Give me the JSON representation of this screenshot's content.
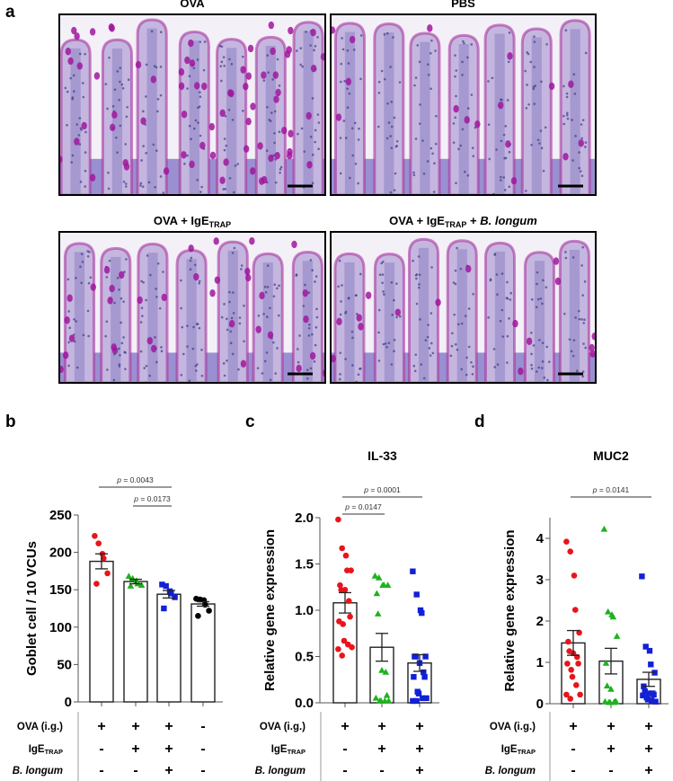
{
  "panel_a": {
    "label": "a",
    "images": [
      {
        "title": "OVA",
        "title_sub": "",
        "title_italic": "",
        "goblet_density": "high"
      },
      {
        "title": "PBS",
        "title_sub": "",
        "title_italic": "",
        "goblet_density": "low"
      },
      {
        "title": "OVA + IgE",
        "title_sub": "TRAP",
        "title_italic": "",
        "goblet_density": "medium"
      },
      {
        "title": "OVA + IgE",
        "title_sub": "TRAP",
        "title_tail": " + ",
        "title_italic": "B. longum",
        "goblet_density": "low"
      }
    ],
    "colors": {
      "tissue": "#c5b6df",
      "goblet": "#a0169e",
      "nuclei": "#3b3f8a",
      "border": "#a6369f"
    }
  },
  "treatment_table": {
    "rows": [
      {
        "label": "OVA (i.g.)",
        "sub": "",
        "italic": false
      },
      {
        "label": "IgE",
        "sub": "TRAP",
        "italic": false
      },
      {
        "label": "B. longum",
        "sub": "",
        "italic": true
      }
    ],
    "b": [
      [
        "+",
        "+",
        "+",
        "-"
      ],
      [
        "-",
        "+",
        "+",
        "-"
      ],
      [
        "-",
        "-",
        "+",
        "-"
      ]
    ],
    "c": [
      [
        "+",
        "+",
        "+"
      ],
      [
        "-",
        "+",
        "+"
      ],
      [
        "-",
        "-",
        "+"
      ]
    ],
    "d": [
      [
        "+",
        "+",
        "+"
      ],
      [
        "-",
        "+",
        "+"
      ],
      [
        "-",
        "-",
        "+"
      ]
    ]
  },
  "chart_data": [
    {
      "panel": "b",
      "type": "bar",
      "title": "",
      "ylabel": "Goblet cell / 10 VCUs",
      "ylim": [
        0,
        250
      ],
      "yticks": [
        "0",
        "50",
        "100",
        "150",
        "200",
        "250"
      ],
      "groups": [
        {
          "mean": 188,
          "sem": 10,
          "color": "#e8141b",
          "marker": "circle",
          "points": [
            222,
            212,
            198,
            192,
            172,
            158
          ]
        },
        {
          "mean": 161,
          "sem": 3,
          "color": "#1fb21f",
          "marker": "triangle",
          "points": [
            168,
            165,
            162,
            158,
            156,
            155
          ]
        },
        {
          "mean": 144,
          "sem": 5,
          "color": "#1220d6",
          "marker": "square",
          "points": [
            157,
            155,
            148,
            145,
            140,
            125
          ]
        },
        {
          "mean": 131,
          "sem": 3,
          "color": "#000000",
          "marker": "circle",
          "points": [
            138,
            137,
            136,
            130,
            122,
            115
          ]
        }
      ],
      "comparisons": [
        {
          "from": 0,
          "to": 2,
          "text": "p = 0.0043"
        },
        {
          "from": 1,
          "to": 2,
          "text": "p = 0.0173"
        }
      ]
    },
    {
      "panel": "c",
      "type": "bar",
      "title": "IL-33",
      "ylabel": "Relative gene expression",
      "ylim": [
        0,
        2.0
      ],
      "yticks": [
        "0.0",
        "0.5",
        "1.0",
        "1.5",
        "2.0"
      ],
      "groups": [
        {
          "mean": 1.08,
          "sem": 0.11,
          "color": "#e8141b",
          "marker": "circle",
          "points": [
            1.98,
            1.67,
            1.59,
            1.43,
            1.43,
            1.27,
            1.22,
            1.22,
            1.1,
            0.93,
            0.88,
            0.85,
            0.67,
            0.63,
            0.6,
            0.58,
            0.51
          ]
        },
        {
          "mean": 0.6,
          "sem": 0.15,
          "color": "#1fb21f",
          "marker": "triangle",
          "points": [
            1.37,
            1.35,
            1.27,
            1.27,
            1.27,
            1.18,
            0.96,
            0.35,
            0.33,
            0.08,
            0.05,
            0.02,
            0.02,
            0.02,
            0.02
          ]
        },
        {
          "mean": 0.43,
          "sem": 0.09,
          "color": "#1220d6",
          "marker": "square",
          "points": [
            1.42,
            1.17,
            1.0,
            0.97,
            0.5,
            0.5,
            0.5,
            0.43,
            0.33,
            0.28,
            0.28,
            0.12,
            0.1,
            0.05,
            0.05,
            0.02,
            0.02
          ]
        }
      ],
      "comparisons": [
        {
          "from": 0,
          "to": 2,
          "text": "p = 0.0001"
        },
        {
          "from": 0,
          "to": 1,
          "text": "p = 0.0147"
        }
      ]
    },
    {
      "panel": "d",
      "type": "bar",
      "title": "MUC2",
      "ylabel": "Relative gene expression",
      "ylim": [
        0,
        4.5
      ],
      "yticks": [
        "0",
        "1",
        "2",
        "3",
        "4"
      ],
      "groups": [
        {
          "mean": 1.47,
          "sem": 0.3,
          "color": "#e8141b",
          "marker": "circle",
          "points": [
            3.92,
            3.68,
            3.1,
            2.27,
            1.72,
            1.5,
            1.27,
            1.22,
            1.13,
            0.97,
            0.97,
            0.82,
            0.65,
            0.45,
            0.22,
            0.22,
            0.12
          ]
        },
        {
          "mean": 1.03,
          "sem": 0.31,
          "color": "#1fb21f",
          "marker": "triangle",
          "points": [
            4.22,
            2.22,
            2.15,
            2.1,
            1.63,
            0.98,
            0.43,
            0.35,
            0.05,
            0.05,
            0.05,
            0.03,
            0.03,
            0.03
          ]
        },
        {
          "mean": 0.59,
          "sem": 0.17,
          "color": "#1220d6",
          "marker": "square",
          "points": [
            3.08,
            1.38,
            1.28,
            0.95,
            0.75,
            0.42,
            0.3,
            0.25,
            0.25,
            0.22,
            0.2,
            0.15,
            0.1,
            0.08,
            0.05
          ]
        }
      ],
      "comparisons": [
        {
          "from": 0,
          "to": 2,
          "text": "p = 0.0141"
        }
      ]
    }
  ]
}
